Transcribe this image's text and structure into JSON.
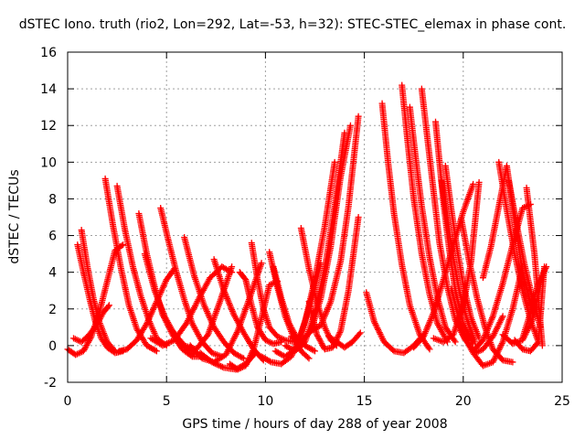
{
  "chart_data": {
    "type": "scatter",
    "title": "dSTEC Iono. truth (rio2, Lon=292, Lat=-53, h=32): STEC-STEC_elemax in phase cont.",
    "xlabel": "GPS time / hours of day 288 of year 2008",
    "ylabel": "dSTEC  / TECUs",
    "xlim": [
      0,
      25
    ],
    "ylim": [
      -2,
      16
    ],
    "xticks": [
      "0",
      "5",
      "10",
      "15",
      "20",
      "25"
    ],
    "yticks": [
      "-2",
      "0",
      "2",
      "4",
      "6",
      "8",
      "10",
      "12",
      "14",
      "16"
    ],
    "grid": true,
    "marker": "plus",
    "color": "#ff0000",
    "series": [
      {
        "x": [
          0.0,
          0.4,
          0.8,
          1.2,
          1.6,
          2.0,
          2.4,
          2.8
        ],
        "y": [
          -0.2,
          -0.5,
          -0.3,
          0.5,
          1.8,
          3.5,
          5.2,
          5.5
        ]
      },
      {
        "x": [
          0.5,
          0.8,
          1.1,
          1.4,
          1.7,
          2.0,
          2.4,
          2.8
        ],
        "y": [
          5.5,
          4.0,
          2.6,
          1.3,
          0.4,
          -0.1,
          -0.4,
          -0.3
        ]
      },
      {
        "x": [
          0.7,
          1.0,
          1.3,
          1.6,
          2.0,
          2.4
        ],
        "y": [
          6.3,
          4.3,
          2.6,
          1.3,
          0.2,
          -0.3
        ]
      },
      {
        "x": [
          0.3,
          0.7,
          1.1,
          1.5,
          1.8,
          2.1
        ],
        "y": [
          0.4,
          0.2,
          0.6,
          1.2,
          1.8,
          2.2
        ]
      },
      {
        "x": [
          1.9,
          2.3,
          2.7,
          3.1,
          3.5,
          4.0,
          4.5
        ],
        "y": [
          9.1,
          6.5,
          4.2,
          2.2,
          0.9,
          0.0,
          -0.3
        ]
      },
      {
        "x": [
          2.5,
          2.9,
          3.3,
          3.7,
          4.1,
          4.5,
          5.0
        ],
        "y": [
          8.7,
          6.3,
          4.3,
          2.7,
          1.4,
          0.4,
          0.0
        ]
      },
      {
        "x": [
          2.6,
          3.0,
          3.5,
          4.0,
          4.5,
          5.0,
          5.4
        ],
        "y": [
          -0.3,
          -0.2,
          0.3,
          1.2,
          2.4,
          3.6,
          4.2
        ]
      },
      {
        "x": [
          3.6,
          4.0,
          4.4,
          4.8,
          5.3,
          5.8,
          6.3,
          6.8
        ],
        "y": [
          7.2,
          5.0,
          3.2,
          1.7,
          0.6,
          -0.2,
          -0.6,
          -0.6
        ]
      },
      {
        "x": [
          3.9,
          4.4,
          4.9,
          5.4,
          5.9,
          6.4,
          6.9
        ],
        "y": [
          5.0,
          3.0,
          1.6,
          0.6,
          0.0,
          -0.4,
          -0.6
        ]
      },
      {
        "x": [
          4.7,
          5.1,
          5.5,
          5.9,
          6.3,
          6.8,
          7.3,
          7.8
        ],
        "y": [
          7.5,
          5.7,
          4.0,
          2.5,
          1.2,
          0.2,
          -0.4,
          -0.6
        ]
      },
      {
        "x": [
          4.2,
          4.8,
          5.4,
          6.0,
          6.6,
          7.2,
          7.8,
          8.3
        ],
        "y": [
          0.4,
          0.0,
          0.3,
          1.2,
          2.5,
          3.7,
          4.3,
          4.0
        ]
      },
      {
        "x": [
          5.9,
          6.4,
          6.9,
          7.4,
          7.9,
          8.4,
          8.9
        ],
        "y": [
          5.9,
          3.8,
          2.2,
          1.0,
          0.2,
          -0.4,
          -0.7
        ]
      },
      {
        "x": [
          5.3,
          5.9,
          6.5,
          7.1,
          7.7,
          8.3
        ],
        "y": [
          0.8,
          0.0,
          -0.2,
          0.6,
          2.4,
          4.3
        ]
      },
      {
        "x": [
          6.2,
          6.8,
          7.4,
          8.0,
          8.6,
          9.2,
          9.8
        ],
        "y": [
          0.0,
          -0.7,
          -0.9,
          -0.5,
          0.8,
          2.6,
          4.5
        ]
      },
      {
        "x": [
          7.4,
          7.9,
          8.4,
          8.9,
          9.4,
          9.9
        ],
        "y": [
          4.7,
          3.0,
          1.7,
          0.7,
          -0.2,
          -0.8
        ]
      },
      {
        "x": [
          6.7,
          7.3,
          7.9,
          8.5,
          9.0,
          9.5
        ],
        "y": [
          -0.4,
          -0.9,
          -1.2,
          -1.3,
          -1.0,
          -0.4
        ]
      },
      {
        "x": [
          8.2,
          8.6,
          9.0,
          9.4,
          9.8,
          10.2,
          10.6
        ],
        "y": [
          -1.0,
          -1.3,
          -1.1,
          -0.2,
          1.5,
          3.3,
          3.5
        ]
      },
      {
        "x": [
          8.7,
          9.0,
          9.3,
          9.6,
          10.0,
          10.4,
          10.8
        ],
        "y": [
          4.0,
          3.6,
          2.2,
          1.0,
          0.3,
          0.1,
          0.2
        ]
      },
      {
        "x": [
          9.3,
          9.6,
          9.9,
          10.2,
          10.6,
          11.0,
          11.5
        ],
        "y": [
          5.6,
          3.6,
          2.0,
          1.0,
          0.5,
          0.3,
          0.2
        ]
      },
      {
        "x": [
          10.2,
          10.6,
          11.0,
          11.4,
          11.8,
          12.2
        ],
        "y": [
          5.1,
          3.2,
          1.6,
          0.5,
          -0.3,
          -0.7
        ]
      },
      {
        "x": [
          10.4,
          10.8,
          11.2,
          11.6,
          12.0,
          12.5
        ],
        "y": [
          4.3,
          2.6,
          1.2,
          0.4,
          0.0,
          -0.3
        ]
      },
      {
        "x": [
          9.8,
          10.3,
          10.8,
          11.3,
          11.8,
          12.3,
          12.8
        ],
        "y": [
          -0.6,
          -0.9,
          -1.0,
          -0.6,
          0.6,
          2.4,
          4.5
        ]
      },
      {
        "x": [
          10.5,
          11.0,
          11.5,
          12.0,
          12.5,
          13.0,
          13.5
        ],
        "y": [
          -0.3,
          -0.6,
          -0.2,
          1.3,
          3.6,
          6.5,
          10.0
        ]
      },
      {
        "x": [
          11.0,
          11.5,
          12.0,
          12.5,
          13.0,
          13.5,
          14.0
        ],
        "y": [
          0.0,
          -0.3,
          0.2,
          1.8,
          4.2,
          7.6,
          11.6
        ]
      },
      {
        "x": [
          11.3,
          11.8,
          12.3,
          12.8,
          13.3,
          13.8,
          14.3
        ],
        "y": [
          0.5,
          0.2,
          0.8,
          2.6,
          5.4,
          9.2,
          12.0
        ]
      },
      {
        "x": [
          11.8,
          12.2,
          12.6,
          13.0,
          13.3,
          13.6
        ],
        "y": [
          6.4,
          4.2,
          2.4,
          1.0,
          0.3,
          0.0
        ]
      },
      {
        "x": [
          12.2,
          12.6,
          13.0,
          13.4,
          13.8,
          14.2,
          14.7
        ],
        "y": [
          2.4,
          0.6,
          -0.2,
          -0.1,
          0.8,
          3.0,
          7.0
        ]
      },
      {
        "x": [
          12.3,
          12.8,
          13.3,
          13.8,
          14.2,
          14.7
        ],
        "y": [
          0.8,
          1.1,
          2.4,
          4.6,
          7.6,
          12.5
        ]
      },
      {
        "x": [
          13.2,
          13.6,
          14.0,
          14.4,
          14.8
        ],
        "y": [
          0.5,
          0.2,
          -0.1,
          0.2,
          0.7
        ]
      },
      {
        "x": [
          15.1,
          15.5,
          16.0,
          16.5,
          17.0,
          17.5,
          18.0
        ],
        "y": [
          2.9,
          1.3,
          0.2,
          -0.3,
          -0.4,
          0.0,
          0.6
        ]
      },
      {
        "x": [
          15.9,
          16.2,
          16.5,
          16.9,
          17.3,
          17.8,
          18.3
        ],
        "y": [
          13.2,
          10.0,
          7.2,
          4.4,
          2.2,
          0.6,
          -0.2
        ]
      },
      {
        "x": [
          16.9,
          17.2,
          17.5,
          17.9,
          18.3,
          18.7,
          19.2
        ],
        "y": [
          14.2,
          11.0,
          8.0,
          5.0,
          2.8,
          1.2,
          0.2
        ]
      },
      {
        "x": [
          17.3,
          17.6,
          17.9,
          18.3,
          18.7,
          19.1,
          19.6
        ],
        "y": [
          13.0,
          10.2,
          7.6,
          4.8,
          2.6,
          1.0,
          0.2
        ]
      },
      {
        "x": [
          17.9,
          18.2,
          18.5,
          18.8,
          19.2,
          19.6,
          20.1
        ],
        "y": [
          14.0,
          11.2,
          8.4,
          5.6,
          3.2,
          1.4,
          0.3
        ]
      },
      {
        "x": [
          18.6,
          18.8,
          19.0,
          19.3,
          19.6,
          20.0,
          20.5
        ],
        "y": [
          12.2,
          10.0,
          7.8,
          5.2,
          3.0,
          1.2,
          0.1
        ]
      },
      {
        "x": [
          18.9,
          19.2,
          19.5,
          19.8,
          20.2,
          20.6
        ],
        "y": [
          9.0,
          6.8,
          4.8,
          3.0,
          1.4,
          0.2
        ]
      },
      {
        "x": [
          19.1,
          19.4,
          19.7,
          20.0,
          20.4,
          20.8
        ],
        "y": [
          9.8,
          7.4,
          5.2,
          3.3,
          1.5,
          0.4
        ]
      },
      {
        "x": [
          17.5,
          18.0,
          18.5,
          19.0,
          19.5,
          20.0,
          20.5
        ],
        "y": [
          -0.1,
          0.5,
          1.8,
          3.6,
          5.5,
          7.3,
          8.8
        ]
      },
      {
        "x": [
          18.5,
          19.0,
          19.5,
          20.0,
          20.4,
          20.8
        ],
        "y": [
          0.4,
          0.2,
          0.6,
          2.2,
          4.6,
          8.9
        ]
      },
      {
        "x": [
          19.4,
          19.8,
          20.2,
          20.6,
          21.0,
          21.5,
          22.0
        ],
        "y": [
          3.1,
          1.4,
          0.2,
          -0.4,
          -0.2,
          0.5,
          1.6
        ]
      },
      {
        "x": [
          19.9,
          20.3,
          20.7,
          21.1,
          21.5,
          22.0,
          22.5
        ],
        "y": [
          6.9,
          4.6,
          2.6,
          1.0,
          -0.2,
          -0.8,
          -0.9
        ]
      },
      {
        "x": [
          20.0,
          20.5,
          21.0,
          21.5,
          22.0,
          22.5,
          23.0
        ],
        "y": [
          0.6,
          -0.4,
          -1.1,
          -0.9,
          0.2,
          2.0,
          4.3
        ]
      },
      {
        "x": [
          20.5,
          21.0,
          21.5,
          22.0,
          22.5,
          23.0,
          23.4
        ],
        "y": [
          -0.3,
          0.3,
          1.6,
          3.4,
          5.5,
          7.5,
          7.7
        ]
      },
      {
        "x": [
          21.0,
          21.4,
          21.8,
          22.2,
          22.6,
          23.0,
          23.5
        ],
        "y": [
          3.7,
          5.4,
          7.6,
          9.8,
          6.8,
          4.0,
          1.8
        ]
      },
      {
        "x": [
          21.8,
          22.2,
          22.6,
          23.0,
          23.4,
          23.8
        ],
        "y": [
          10.0,
          7.4,
          5.0,
          3.0,
          1.4,
          0.2
        ]
      },
      {
        "x": [
          22.3,
          22.7,
          23.1,
          23.5,
          23.9
        ],
        "y": [
          9.0,
          6.6,
          4.4,
          2.6,
          1.0
        ]
      },
      {
        "x": [
          22.0,
          22.5,
          23.0,
          23.5,
          24.0
        ],
        "y": [
          0.6,
          0.1,
          0.3,
          1.4,
          3.8
        ]
      },
      {
        "x": [
          22.6,
          23.0,
          23.4,
          23.8,
          24.1
        ],
        "y": [
          0.3,
          -0.2,
          -0.3,
          0.2,
          4.3
        ]
      },
      {
        "x": [
          23.0,
          23.4,
          23.8,
          24.2
        ],
        "y": [
          0.4,
          1.8,
          3.4,
          4.3
        ]
      },
      {
        "x": [
          23.2,
          23.6,
          24.0
        ],
        "y": [
          8.6,
          5.0,
          0.0
        ]
      }
    ]
  }
}
